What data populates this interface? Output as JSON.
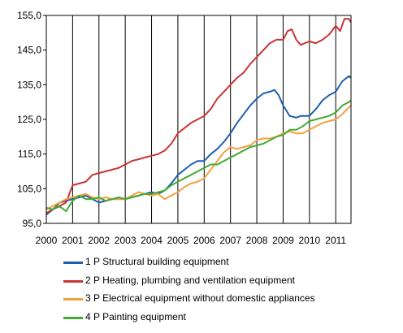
{
  "chart_data": {
    "type": "line",
    "title": "",
    "xlabel": "",
    "ylabel": "",
    "ylim": [
      95,
      155
    ],
    "y_ticks": [
      "95,0",
      "105,0",
      "115,0",
      "125,0",
      "135,0",
      "145,0",
      "155,0"
    ],
    "y_tick_values": [
      95,
      105,
      115,
      125,
      135,
      145,
      155
    ],
    "x_ticks": [
      "2000",
      "2001",
      "2002",
      "2003",
      "2004",
      "2005",
      "2006",
      "2007",
      "2008",
      "2009",
      "2010",
      "2011"
    ],
    "x_tick_values": [
      2000,
      2001,
      2002,
      2003,
      2004,
      2005,
      2006,
      2007,
      2008,
      2009,
      2010,
      2011
    ],
    "xlim": [
      2000,
      2011.58
    ],
    "grid": "vertical",
    "legend_position": "bottom",
    "series": [
      {
        "name": "1 P Structural building equipment",
        "color": "#1f5fad",
        "points": [
          [
            2000.0,
            97.5
          ],
          [
            2000.25,
            99
          ],
          [
            2000.5,
            101
          ],
          [
            2000.75,
            101.5
          ],
          [
            2001.0,
            102
          ],
          [
            2001.25,
            102.5
          ],
          [
            2001.5,
            103
          ],
          [
            2001.75,
            102
          ],
          [
            2002.0,
            101
          ],
          [
            2002.25,
            101.5
          ],
          [
            2002.5,
            102
          ],
          [
            2002.75,
            102
          ],
          [
            2003.0,
            102
          ],
          [
            2003.25,
            102.5
          ],
          [
            2003.5,
            103
          ],
          [
            2003.75,
            103.5
          ],
          [
            2004.0,
            104
          ],
          [
            2004.25,
            103.5
          ],
          [
            2004.5,
            104.5
          ],
          [
            2004.75,
            106.5
          ],
          [
            2005.0,
            109
          ],
          [
            2005.25,
            110.5
          ],
          [
            2005.5,
            112
          ],
          [
            2005.75,
            113
          ],
          [
            2006.0,
            113
          ],
          [
            2006.25,
            115
          ],
          [
            2006.5,
            116.5
          ],
          [
            2006.75,
            118.5
          ],
          [
            2007.0,
            121
          ],
          [
            2007.25,
            124
          ],
          [
            2007.5,
            126.5
          ],
          [
            2007.75,
            129
          ],
          [
            2008.0,
            131
          ],
          [
            2008.25,
            132.5
          ],
          [
            2008.5,
            133
          ],
          [
            2008.67,
            133.5
          ],
          [
            2008.83,
            132
          ],
          [
            2009.0,
            129
          ],
          [
            2009.25,
            126
          ],
          [
            2009.5,
            125.5
          ],
          [
            2009.67,
            126
          ],
          [
            2010.0,
            126
          ],
          [
            2010.25,
            128
          ],
          [
            2010.5,
            130.5
          ],
          [
            2010.75,
            132
          ],
          [
            2011.0,
            133
          ],
          [
            2011.25,
            136
          ],
          [
            2011.5,
            137.5
          ],
          [
            2011.58,
            137
          ]
        ]
      },
      {
        "name": "2 P Heating, plumbing and ventilation equipment",
        "color": "#cc3333",
        "points": [
          [
            2000.0,
            98
          ],
          [
            2000.25,
            99
          ],
          [
            2000.5,
            100
          ],
          [
            2000.75,
            101
          ],
          [
            2001.0,
            106
          ],
          [
            2001.25,
            106.5
          ],
          [
            2001.5,
            107
          ],
          [
            2001.75,
            109
          ],
          [
            2002.0,
            109.5
          ],
          [
            2002.25,
            110
          ],
          [
            2002.5,
            110.5
          ],
          [
            2002.75,
            111
          ],
          [
            2003.0,
            112
          ],
          [
            2003.25,
            113
          ],
          [
            2003.5,
            113.5
          ],
          [
            2003.75,
            114
          ],
          [
            2004.0,
            114.5
          ],
          [
            2004.25,
            115
          ],
          [
            2004.5,
            116
          ],
          [
            2004.75,
            118
          ],
          [
            2005.0,
            121
          ],
          [
            2005.25,
            122.5
          ],
          [
            2005.5,
            124
          ],
          [
            2005.75,
            125
          ],
          [
            2006.0,
            126
          ],
          [
            2006.25,
            128
          ],
          [
            2006.5,
            131
          ],
          [
            2006.75,
            133
          ],
          [
            2007.0,
            135
          ],
          [
            2007.25,
            137
          ],
          [
            2007.5,
            138.5
          ],
          [
            2007.75,
            141
          ],
          [
            2008.0,
            143
          ],
          [
            2008.25,
            145
          ],
          [
            2008.5,
            147
          ],
          [
            2008.75,
            148
          ],
          [
            2009.0,
            148
          ],
          [
            2009.17,
            150.5
          ],
          [
            2009.33,
            151
          ],
          [
            2009.5,
            148
          ],
          [
            2009.67,
            146.5
          ],
          [
            2009.83,
            147
          ],
          [
            2010.0,
            147.5
          ],
          [
            2010.25,
            147
          ],
          [
            2010.5,
            148
          ],
          [
            2010.75,
            149.5
          ],
          [
            2011.0,
            152
          ],
          [
            2011.17,
            150.5
          ],
          [
            2011.33,
            154
          ],
          [
            2011.5,
            154
          ],
          [
            2011.58,
            153
          ]
        ]
      },
      {
        "name": "3 P Electrical equipment without domestic appliances",
        "color": "#f5a040",
        "points": [
          [
            2000.0,
            99
          ],
          [
            2000.25,
            100
          ],
          [
            2000.5,
            101
          ],
          [
            2000.75,
            102
          ],
          [
            2001.0,
            102.5
          ],
          [
            2001.25,
            103
          ],
          [
            2001.5,
            103.5
          ],
          [
            2001.75,
            102.5
          ],
          [
            2002.0,
            102
          ],
          [
            2002.25,
            102.5
          ],
          [
            2002.5,
            102
          ],
          [
            2002.75,
            102
          ],
          [
            2003.0,
            102
          ],
          [
            2003.25,
            103
          ],
          [
            2003.5,
            104
          ],
          [
            2003.75,
            103.5
          ],
          [
            2004.0,
            103
          ],
          [
            2004.25,
            103.5
          ],
          [
            2004.5,
            102
          ],
          [
            2004.75,
            103
          ],
          [
            2005.0,
            104
          ],
          [
            2005.25,
            105.5
          ],
          [
            2005.5,
            106.5
          ],
          [
            2005.75,
            107
          ],
          [
            2006.0,
            108
          ],
          [
            2006.25,
            110.5
          ],
          [
            2006.5,
            113
          ],
          [
            2006.75,
            115.5
          ],
          [
            2007.0,
            117
          ],
          [
            2007.25,
            116.5
          ],
          [
            2007.5,
            117
          ],
          [
            2007.75,
            117.5
          ],
          [
            2008.0,
            119
          ],
          [
            2008.25,
            119.5
          ],
          [
            2008.5,
            119.5
          ],
          [
            2008.75,
            120
          ],
          [
            2009.0,
            121
          ],
          [
            2009.25,
            121.5
          ],
          [
            2009.5,
            121
          ],
          [
            2009.75,
            121
          ],
          [
            2010.0,
            122
          ],
          [
            2010.25,
            123
          ],
          [
            2010.5,
            124
          ],
          [
            2010.75,
            124.5
          ],
          [
            2011.0,
            125
          ],
          [
            2011.25,
            126.5
          ],
          [
            2011.5,
            128.5
          ],
          [
            2011.58,
            129
          ]
        ]
      },
      {
        "name": "4 P Painting equipment",
        "color": "#44aa33",
        "points": [
          [
            2000.0,
            99.5
          ],
          [
            2000.25,
            99
          ],
          [
            2000.42,
            100
          ],
          [
            2000.58,
            99.5
          ],
          [
            2000.75,
            98.5
          ],
          [
            2001.0,
            101.5
          ],
          [
            2001.25,
            103
          ],
          [
            2001.5,
            102
          ],
          [
            2001.75,
            102
          ],
          [
            2002.0,
            102.5
          ],
          [
            2002.25,
            101.5
          ],
          [
            2002.5,
            102
          ],
          [
            2002.75,
            102.5
          ],
          [
            2003.0,
            102
          ],
          [
            2003.25,
            102.5
          ],
          [
            2003.5,
            103
          ],
          [
            2003.75,
            103.5
          ],
          [
            2004.0,
            103.5
          ],
          [
            2004.25,
            104
          ],
          [
            2004.5,
            104.5
          ],
          [
            2004.75,
            106
          ],
          [
            2005.0,
            107
          ],
          [
            2005.25,
            108
          ],
          [
            2005.5,
            109
          ],
          [
            2005.75,
            110
          ],
          [
            2006.0,
            111
          ],
          [
            2006.25,
            112
          ],
          [
            2006.5,
            112
          ],
          [
            2006.75,
            113
          ],
          [
            2007.0,
            114
          ],
          [
            2007.25,
            115
          ],
          [
            2007.5,
            116
          ],
          [
            2007.75,
            117
          ],
          [
            2008.0,
            117.5
          ],
          [
            2008.25,
            118
          ],
          [
            2008.5,
            119
          ],
          [
            2008.75,
            120
          ],
          [
            2009.0,
            120.5
          ],
          [
            2009.25,
            122
          ],
          [
            2009.5,
            122
          ],
          [
            2009.75,
            123
          ],
          [
            2010.0,
            124.5
          ],
          [
            2010.25,
            125
          ],
          [
            2010.5,
            125.5
          ],
          [
            2010.75,
            126
          ],
          [
            2011.0,
            127
          ],
          [
            2011.25,
            129
          ],
          [
            2011.5,
            130
          ],
          [
            2011.58,
            130.5
          ]
        ]
      }
    ]
  }
}
